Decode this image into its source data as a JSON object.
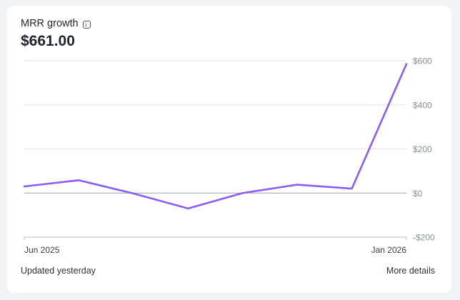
{
  "card": {
    "title": "MRR growth",
    "value": "$661.00",
    "footer_status": "Updated yesterday",
    "footer_link": "More details"
  },
  "chart_data": {
    "type": "line",
    "x": [
      "2025-06",
      "2025-07",
      "2025-08",
      "2025-09",
      "2025-10",
      "2025-11",
      "2025-12",
      "2026-01"
    ],
    "series": [
      {
        "values": [
          30,
          58,
          -2,
          -70,
          0,
          38,
          20,
          585
        ]
      }
    ],
    "x_tick_labels": [
      "Jun 2025",
      "Jan 2026"
    ],
    "y_ticks": [
      600,
      400,
      200,
      0,
      -200
    ],
    "y_tick_labels": [
      "$600",
      "$400",
      "$200",
      "$0",
      "-$200"
    ],
    "ylim": [
      -200,
      600
    ],
    "grid": true,
    "colors": {
      "line": "#8b5cf6",
      "grid": "#e3e5e9",
      "zero_line": "#9aa1ad",
      "axis": "#b9bec7",
      "tick_text": "#8a919c"
    }
  }
}
